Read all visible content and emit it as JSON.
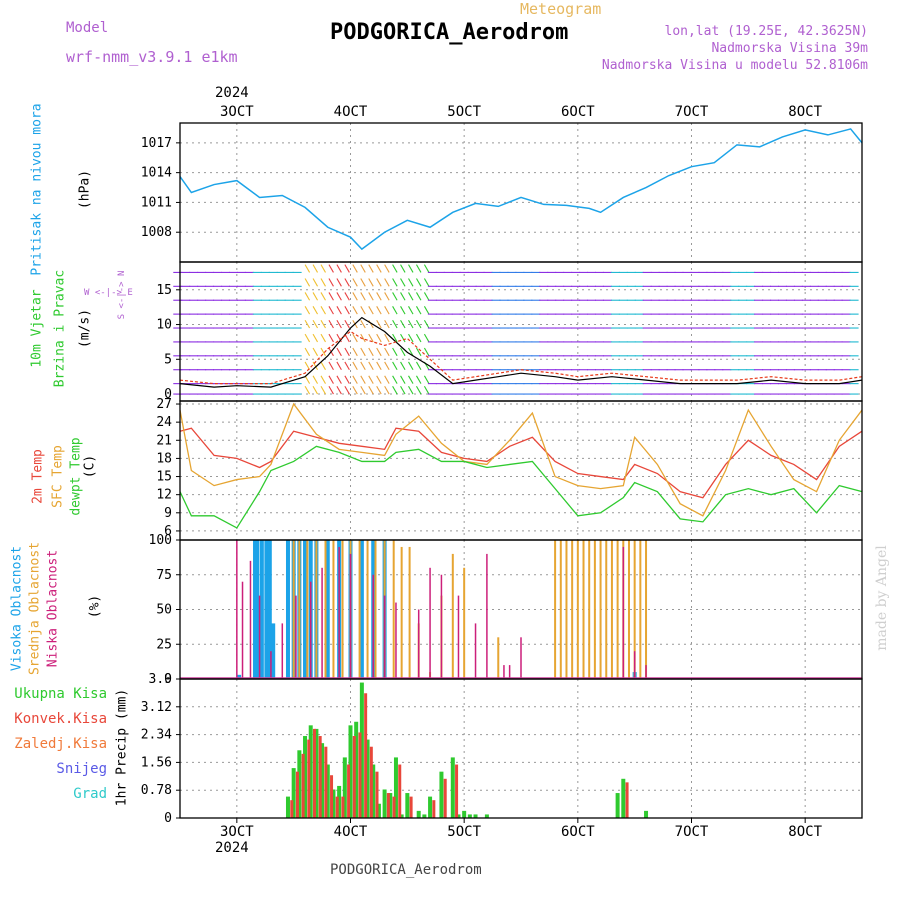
{
  "header": {
    "model_label": "Model",
    "model_name": "wrf-nmm_v3.9.1 e1km",
    "product": "Meteogram",
    "station": "PODGORICA_Aerodrom",
    "lonlat": "lon,lat (19.25E, 42.3625N)",
    "elevation": "Nadmorska Visina 39m",
    "model_elevation": "Nadmorska Visina u modelu 52.8106m"
  },
  "time_axis": {
    "year": "2024",
    "ticks": [
      "3OCT",
      "4OCT",
      "5OCT",
      "6OCT",
      "7OCT",
      "8OCT"
    ]
  },
  "footer": {
    "station": "PODGORICA_Aerodrom",
    "credit": "made by Angel"
  },
  "colors": {
    "pressure": "#1ca3e8",
    "wind_speed": "#000000",
    "gust": "#e83a1a",
    "temp2m": "#e8473a",
    "sfc_temp": "#e6a532",
    "dewpoint": "#2fca2f",
    "high_cloud": "#1ca3e8",
    "mid_cloud": "#e6a532",
    "low_cloud": "#cc1f7a",
    "total_precip": "#2fca2f",
    "conv_precip": "#e8473a",
    "grid": "#999999"
  },
  "panels": {
    "pressure": {
      "label": "Pritisak na nivou mora",
      "unit": "(hPa)"
    },
    "wind": {
      "label1": "10m Vjetar",
      "label2": "Brzina i Pravac",
      "unit": "(m/s)",
      "compass": "W <-|-> E",
      "compass_ns": "S <-|-> N"
    },
    "temp": {
      "label1": "2m Temp",
      "label2": "SFC Temp",
      "label3": "dewpt Temp",
      "unit": "(C)"
    },
    "cloud": {
      "label1": "Visoka Oblacnost",
      "label2": "Srednja Oblacnost",
      "label3": "Niska Oblacnost",
      "unit": "(%)"
    },
    "precip": {
      "legend": [
        "Ukupna Kisa",
        "Konvek.Kisa",
        "Zaledj.Kisa",
        "Snijeg",
        "Grad"
      ],
      "unit": "1hr Precip (mm)"
    }
  },
  "chart_data": [
    {
      "type": "line",
      "panel": "pressure",
      "ylabel": "(hPa)",
      "ylim": [
        1005,
        1019
      ],
      "yticks": [
        1008,
        1011,
        1014,
        1017
      ],
      "x": [
        2.5,
        2.6,
        2.8,
        3.0,
        3.2,
        3.4,
        3.6,
        3.8,
        4.0,
        4.1,
        4.3,
        4.5,
        4.7,
        4.9,
        5.1,
        5.3,
        5.5,
        5.7,
        5.9,
        6.1,
        6.2,
        6.4,
        6.6,
        6.8,
        7.0,
        7.2,
        7.4,
        7.6,
        7.8,
        8.0,
        8.2,
        8.4,
        8.5
      ],
      "series": [
        {
          "values": [
            1013.6,
            1012.0,
            1012.8,
            1013.2,
            1011.5,
            1011.7,
            1010.5,
            1008.5,
            1007.5,
            1006.3,
            1008.0,
            1009.2,
            1008.5,
            1010.0,
            1010.9,
            1010.6,
            1011.5,
            1010.8,
            1010.7,
            1010.4,
            1010.0,
            1011.5,
            1012.5,
            1013.7,
            1014.6,
            1015.0,
            1016.8,
            1016.6,
            1017.6,
            1018.3,
            1017.8,
            1018.4,
            1017.0
          ]
        }
      ]
    },
    {
      "type": "line",
      "panel": "wind",
      "ylabel": "(m/s)",
      "ylim": [
        -1,
        19
      ],
      "yticks": [
        0,
        5,
        10,
        15
      ],
      "x": [
        2.5,
        2.8,
        3.0,
        3.3,
        3.6,
        3.8,
        4.0,
        4.1,
        4.3,
        4.5,
        4.7,
        4.9,
        5.1,
        5.3,
        5.5,
        5.8,
        6.0,
        6.3,
        6.6,
        6.9,
        7.1,
        7.4,
        7.7,
        8.0,
        8.3,
        8.5
      ],
      "series": [
        {
          "values": [
            1.5,
            1.0,
            1.2,
            1.0,
            2.5,
            5.5,
            9.5,
            11.0,
            9.0,
            6.0,
            4.0,
            1.5,
            2.0,
            2.5,
            3.0,
            2.5,
            2.0,
            2.5,
            2.0,
            1.5,
            1.5,
            1.5,
            2.0,
            1.5,
            1.5,
            2.0
          ]
        },
        {
          "values": [
            2.0,
            1.5,
            1.5,
            1.5,
            3.0,
            6.5,
            9.0,
            8.0,
            7.0,
            8.0,
            5.0,
            2.0,
            2.5,
            3.0,
            3.5,
            3.0,
            2.5,
            3.0,
            2.5,
            2.0,
            2.0,
            2.0,
            2.5,
            2.0,
            2.0,
            2.5
          ]
        }
      ]
    },
    {
      "type": "line",
      "panel": "temp",
      "ylabel": "(C)",
      "ylim": [
        4.5,
        27.5
      ],
      "yticks": [
        6,
        9,
        12,
        15,
        18,
        21,
        24,
        27
      ],
      "x": [
        2.5,
        2.6,
        2.8,
        3.0,
        3.2,
        3.3,
        3.5,
        3.7,
        3.9,
        4.1,
        4.3,
        4.4,
        4.6,
        4.8,
        5.0,
        5.2,
        5.4,
        5.6,
        5.8,
        6.0,
        6.2,
        6.4,
        6.5,
        6.7,
        6.9,
        7.1,
        7.3,
        7.5,
        7.7,
        7.9,
        8.1,
        8.3,
        8.5
      ],
      "series": [
        {
          "values": [
            22.5,
            23.0,
            18.5,
            18.0,
            16.5,
            17.5,
            22.5,
            21.5,
            20.5,
            20.0,
            19.5,
            23.0,
            22.5,
            19.0,
            18.0,
            17.5,
            20.0,
            21.5,
            17.5,
            15.5,
            15.0,
            14.5,
            17.0,
            15.5,
            12.5,
            11.5,
            17.0,
            21.0,
            18.5,
            17.0,
            14.5,
            20.0,
            22.5
          ]
        },
        {
          "values": [
            26.0,
            16.0,
            13.5,
            14.5,
            15.0,
            17.0,
            27.0,
            22.0,
            19.5,
            19.0,
            18.5,
            22.0,
            25.0,
            20.5,
            17.5,
            17.0,
            21.0,
            25.5,
            15.0,
            13.5,
            13.0,
            13.5,
            21.5,
            17.0,
            10.5,
            8.5,
            16.0,
            26.0,
            20.0,
            14.5,
            12.5,
            21.0,
            26.0
          ]
        },
        {
          "values": [
            12.5,
            8.5,
            8.5,
            6.5,
            12.5,
            16.0,
            17.5,
            20.0,
            19.0,
            17.5,
            17.5,
            19.0,
            19.5,
            17.5,
            17.5,
            16.5,
            17.0,
            17.5,
            13.0,
            8.5,
            9.0,
            11.5,
            14.0,
            12.5,
            8.0,
            7.5,
            12.0,
            13.0,
            12.0,
            13.0,
            9.0,
            13.5,
            12.5
          ]
        }
      ]
    },
    {
      "type": "bar",
      "panel": "cloud",
      "ylabel": "(%)",
      "ylim": [
        0,
        100
      ],
      "yticks": [
        0,
        25,
        50,
        75,
        100
      ],
      "series": [
        {
          "x": [
            3.02,
            3.16,
            3.18,
            3.22,
            3.26,
            3.29,
            3.32,
            3.45,
            3.5,
            3.55,
            3.6,
            3.65,
            3.7,
            3.8,
            3.9,
            4.0,
            4.1,
            4.2,
            4.3,
            6.5
          ],
          "values": [
            3,
            100,
            100,
            100,
            100,
            100,
            40,
            100,
            100,
            100,
            100,
            100,
            100,
            100,
            100,
            100,
            100,
            100,
            100,
            5
          ]
        },
        {
          "x": [
            3.5,
            3.55,
            3.62,
            3.7,
            3.78,
            3.85,
            3.93,
            4.0,
            4.08,
            4.15,
            4.22,
            4.3,
            4.38,
            4.45,
            4.52,
            4.6,
            4.7,
            4.8,
            4.9,
            5.0,
            5.3,
            5.8,
            5.85,
            5.9,
            5.95,
            6.0,
            6.05,
            6.1,
            6.15,
            6.2,
            6.25,
            6.3,
            6.35,
            6.4,
            6.45,
            6.5,
            6.55,
            6.6
          ],
          "values": [
            100,
            100,
            100,
            100,
            100,
            100,
            100,
            100,
            100,
            100,
            100,
            100,
            100,
            95,
            95,
            40,
            5,
            60,
            90,
            80,
            30,
            100,
            100,
            100,
            100,
            100,
            100,
            100,
            100,
            100,
            100,
            100,
            100,
            100,
            100,
            100,
            100,
            100
          ]
        },
        {
          "x": [
            3.0,
            3.05,
            3.12,
            3.2,
            3.3,
            3.4,
            3.52,
            3.65,
            3.75,
            3.9,
            4.0,
            4.2,
            4.3,
            4.4,
            4.6,
            4.7,
            4.8,
            4.95,
            5.1,
            5.2,
            5.35,
            5.4,
            5.5,
            6.4,
            6.5,
            6.6
          ],
          "values": [
            100,
            70,
            85,
            60,
            20,
            40,
            60,
            70,
            80,
            95,
            90,
            75,
            60,
            55,
            50,
            80,
            75,
            60,
            40,
            90,
            10,
            10,
            30,
            95,
            20,
            10
          ]
        }
      ]
    },
    {
      "type": "bar",
      "panel": "precip",
      "ylabel": "1hr Precip (mm)",
      "ylim": [
        0,
        3.9
      ],
      "yticks": [
        0,
        0.78,
        1.56,
        2.34,
        3.12,
        3.9
      ],
      "series": [
        {
          "x": [
            3.45,
            3.5,
            3.55,
            3.6,
            3.65,
            3.7,
            3.75,
            3.8,
            3.85,
            3.9,
            3.95,
            4.0,
            4.05,
            4.1,
            4.15,
            4.2,
            4.25,
            4.3,
            4.35,
            4.4,
            4.45,
            4.5,
            4.6,
            4.65,
            4.7,
            4.8,
            4.9,
            4.95,
            5.0,
            5.05,
            5.1,
            5.2,
            6.35,
            6.4,
            6.6
          ],
          "values": [
            0.6,
            1.4,
            1.9,
            2.3,
            2.6,
            2.5,
            2.1,
            1.5,
            0.8,
            0.9,
            1.7,
            2.6,
            2.7,
            3.8,
            2.2,
            1.5,
            0.4,
            0.8,
            0.7,
            1.7,
            0.1,
            0.7,
            0.2,
            0.1,
            0.6,
            1.3,
            1.7,
            0.1,
            0.2,
            0.1,
            0.1,
            0.1,
            0.7,
            1.1,
            0.2
          ]
        },
        {
          "x": [
            3.47,
            3.52,
            3.57,
            3.62,
            3.67,
            3.72,
            3.77,
            3.82,
            3.87,
            3.92,
            3.97,
            4.02,
            4.07,
            4.12,
            4.17,
            4.22,
            4.32,
            4.37,
            4.42,
            4.52,
            4.72,
            4.82,
            4.92,
            6.42
          ],
          "values": [
            0.5,
            1.3,
            1.8,
            2.2,
            2.5,
            2.3,
            2.0,
            1.2,
            0.6,
            0.6,
            1.5,
            2.3,
            2.4,
            3.5,
            2.0,
            1.3,
            0.7,
            0.6,
            1.5,
            0.6,
            0.5,
            1.1,
            1.5,
            1.0
          ]
        }
      ]
    }
  ]
}
